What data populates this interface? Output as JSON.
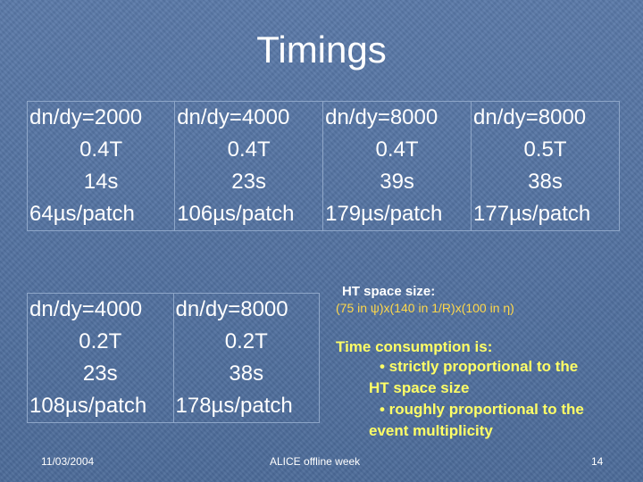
{
  "slide": {
    "title": "Timings",
    "table_top": {
      "columns": [
        {
          "lines": [
            "dn/dy=2000",
            "0.4T",
            "14s",
            "64µs/patch"
          ]
        },
        {
          "lines": [
            "dn/dy=4000",
            "0.4T",
            "23s",
            "106µs/patch"
          ]
        },
        {
          "lines": [
            "dn/dy=8000",
            "0.4T",
            "39s",
            "179µs/patch"
          ]
        },
        {
          "lines": [
            "dn/dy=8000",
            "0.5T",
            "38s",
            "177µs/patch"
          ]
        }
      ]
    },
    "table_bottom": {
      "columns": [
        {
          "lines": [
            "dn/dy=4000",
            "0.2T",
            "23s",
            "108µs/patch"
          ]
        },
        {
          "lines": [
            "dn/dy=8000",
            "0.2T",
            "38s",
            "178µs/patch"
          ]
        }
      ]
    },
    "notes": {
      "ht_title": "HT space size:",
      "ht_detail": "(75 in ψ)x(140 in 1/R)x(100 in η)",
      "tc_title": "Time consumption is:",
      "bullet1_a": "• strictly proportional to the",
      "bullet1_b": "HT space size",
      "bullet2_a": "• roughly proportional to the",
      "bullet2_b": "event multiplicity"
    },
    "footer": {
      "date": "11/03/2004",
      "center": "ALICE offline week",
      "page": "14"
    }
  }
}
